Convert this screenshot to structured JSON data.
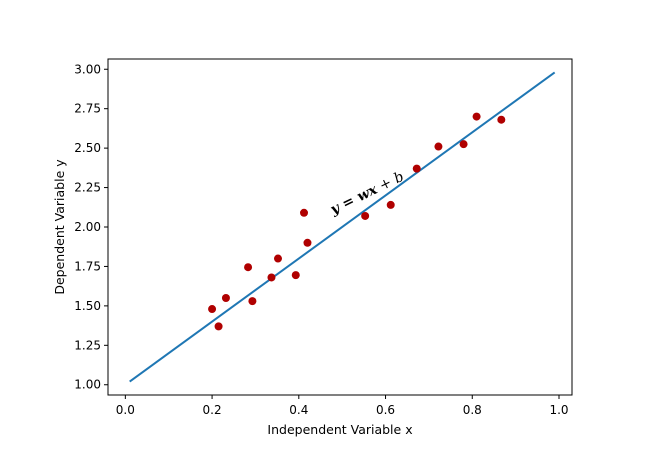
{
  "chart_data": {
    "type": "scatter",
    "xlabel": "Independent Variable  x",
    "ylabel": "Dependent Variable  y",
    "xlim": [
      -0.04,
      1.03
    ],
    "ylim": [
      0.935,
      3.065
    ],
    "xticks": [
      0.0,
      0.2,
      0.4,
      0.6,
      0.8,
      1.0
    ],
    "xtick_labels": [
      "0.0",
      "0.2",
      "0.4",
      "0.6",
      "0.8",
      "1.0"
    ],
    "yticks": [
      1.0,
      1.25,
      1.5,
      1.75,
      2.0,
      2.25,
      2.5,
      2.75,
      3.0
    ],
    "ytick_labels": [
      "1.00",
      "1.25",
      "1.50",
      "1.75",
      "2.00",
      "2.25",
      "2.50",
      "2.75",
      "3.00"
    ],
    "grid": false,
    "series": [
      {
        "kind": "scatter",
        "color": "#b00000",
        "x": [
          0.2,
          0.215,
          0.232,
          0.283,
          0.293,
          0.337,
          0.352,
          0.393,
          0.412,
          0.42,
          0.553,
          0.612,
          0.672,
          0.722,
          0.78,
          0.81,
          0.867
        ],
        "y": [
          1.48,
          1.37,
          1.55,
          1.745,
          1.53,
          1.68,
          1.8,
          1.695,
          2.09,
          1.9,
          2.07,
          2.14,
          2.37,
          2.51,
          2.525,
          2.7,
          2.68
        ]
      },
      {
        "kind": "line",
        "color": "#1f77b4",
        "x": [
          0.01,
          0.99
        ],
        "y": [
          1.02,
          2.98
        ]
      }
    ],
    "annotation": {
      "prefix": "y = ",
      "w": "w",
      "x": "x",
      "suffix": " + b"
    }
  }
}
